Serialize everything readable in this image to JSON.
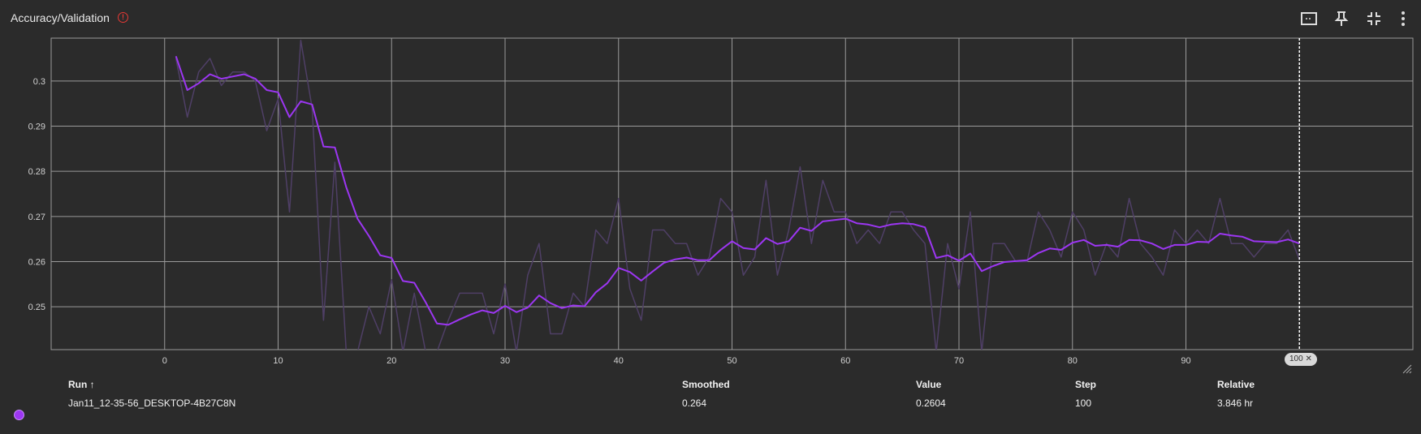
{
  "header": {
    "title": "Accuracy/Validation",
    "info_icon": "info-icon",
    "tools": [
      "fit-domain-icon",
      "pin-icon",
      "collapse-icon",
      "more-vert-icon"
    ]
  },
  "colors": {
    "background": "#2b2b2b",
    "smoothed": "#9c36f2",
    "raw": "#4f3f66",
    "grid": "#9a9a9a"
  },
  "chart_data": {
    "type": "line",
    "title": "Accuracy/Validation",
    "xlim": [
      -10,
      110
    ],
    "ylim": [
      0.2405,
      0.3095
    ],
    "x_ticks": [
      0,
      10,
      20,
      30,
      40,
      50,
      60,
      70,
      80,
      90
    ],
    "y_ticks": [
      "0.25",
      "0.26",
      "0.27",
      "0.28",
      "0.29",
      "0.3"
    ],
    "grid": true,
    "x_marker": 100,
    "series": [
      {
        "name": "raw",
        "x": [
          1,
          2,
          3,
          4,
          5,
          6,
          7,
          8,
          9,
          10,
          11,
          12,
          13,
          14,
          15,
          16,
          17,
          18,
          19,
          20,
          21,
          22,
          23,
          24,
          25,
          26,
          27,
          28,
          29,
          30,
          31,
          32,
          33,
          34,
          35,
          36,
          37,
          38,
          39,
          40,
          41,
          42,
          43,
          44,
          45,
          46,
          47,
          48,
          49,
          50,
          51,
          52,
          53,
          54,
          55,
          56,
          57,
          58,
          59,
          60,
          61,
          62,
          63,
          64,
          65,
          66,
          67,
          68,
          69,
          70,
          71,
          72,
          73,
          74,
          75,
          76,
          77,
          78,
          79,
          80,
          81,
          82,
          83,
          84,
          85,
          86,
          87,
          88,
          89,
          90,
          91,
          92,
          93,
          94,
          95,
          96,
          97,
          98,
          99,
          100
        ],
        "y": [
          0.305,
          0.292,
          0.302,
          0.305,
          0.299,
          0.302,
          0.302,
          0.3,
          0.289,
          0.296,
          0.271,
          0.309,
          0.294,
          0.247,
          0.282,
          0.24,
          0.24,
          0.25,
          0.244,
          0.256,
          0.24,
          0.253,
          0.24,
          0.24,
          0.247,
          0.253,
          0.253,
          0.253,
          0.244,
          0.255,
          0.24,
          0.257,
          0.264,
          0.244,
          0.244,
          0.253,
          0.25,
          0.267,
          0.264,
          0.274,
          0.254,
          0.247,
          0.267,
          0.267,
          0.264,
          0.264,
          0.257,
          0.261,
          0.274,
          0.271,
          0.257,
          0.261,
          0.278,
          0.257,
          0.267,
          0.281,
          0.264,
          0.278,
          0.271,
          0.271,
          0.264,
          0.267,
          0.264,
          0.271,
          0.271,
          0.267,
          0.264,
          0.24,
          0.264,
          0.254,
          0.271,
          0.24,
          0.264,
          0.264,
          0.26,
          0.26,
          0.271,
          0.267,
          0.261,
          0.271,
          0.267,
          0.257,
          0.264,
          0.261,
          0.274,
          0.264,
          0.261,
          0.257,
          0.267,
          0.264,
          0.267,
          0.264,
          0.274,
          0.264,
          0.264,
          0.261,
          0.264,
          0.264,
          0.267,
          0.2604
        ]
      },
      {
        "name": "smoothed",
        "x": [
          1,
          2,
          3,
          4,
          5,
          6,
          7,
          8,
          9,
          10,
          11,
          12,
          13,
          14,
          15,
          16,
          17,
          18,
          19,
          20,
          21,
          22,
          23,
          24,
          25,
          26,
          27,
          28,
          29,
          30,
          31,
          32,
          33,
          34,
          35,
          36,
          37,
          38,
          39,
          40,
          41,
          42,
          43,
          44,
          45,
          46,
          47,
          48,
          49,
          50,
          51,
          52,
          53,
          54,
          55,
          56,
          57,
          58,
          59,
          60,
          61,
          62,
          63,
          64,
          65,
          66,
          67,
          68,
          69,
          70,
          71,
          72,
          73,
          74,
          75,
          76,
          77,
          78,
          79,
          80,
          81,
          82,
          83,
          84,
          85,
          86,
          87,
          88,
          89,
          90,
          91,
          92,
          93,
          94,
          95,
          96,
          97,
          98,
          99,
          100
        ],
        "y": [
          0.3055,
          0.298,
          0.2995,
          0.3015,
          0.3005,
          0.301,
          0.3015,
          0.3005,
          0.298,
          0.2975,
          0.292,
          0.2955,
          0.2948,
          0.2855,
          0.2853,
          0.2765,
          0.2695,
          0.2657,
          0.2614,
          0.2608,
          0.2557,
          0.2553,
          0.251,
          0.2463,
          0.246,
          0.2472,
          0.2483,
          0.2492,
          0.2486,
          0.2502,
          0.2488,
          0.2498,
          0.2525,
          0.2508,
          0.2497,
          0.2503,
          0.2501,
          0.2532,
          0.2552,
          0.2586,
          0.2577,
          0.2558,
          0.2578,
          0.2597,
          0.2605,
          0.2609,
          0.2603,
          0.2603,
          0.2626,
          0.2645,
          0.263,
          0.2627,
          0.2652,
          0.2639,
          0.2645,
          0.2675,
          0.2668,
          0.2689,
          0.2692,
          0.2695,
          0.2685,
          0.2682,
          0.2676,
          0.2682,
          0.2685,
          0.2683,
          0.2676,
          0.2608,
          0.2614,
          0.2602,
          0.2618,
          0.2579,
          0.259,
          0.2599,
          0.2601,
          0.2603,
          0.2619,
          0.2629,
          0.2626,
          0.2642,
          0.2648,
          0.2635,
          0.2637,
          0.2633,
          0.2648,
          0.2647,
          0.264,
          0.2628,
          0.2637,
          0.2637,
          0.2644,
          0.2643,
          0.2662,
          0.2658,
          0.2655,
          0.2645,
          0.2644,
          0.2643,
          0.2649,
          0.264
        ]
      }
    ]
  },
  "marker_label": "100 ✕",
  "table": {
    "headers": {
      "run": "Run ↑",
      "smoothed": "Smoothed",
      "value": "Value",
      "step": "Step",
      "relative": "Relative"
    },
    "row": {
      "run": "Jan11_12-35-56_DESKTOP-4B27C8N",
      "smoothed": "0.264",
      "value": "0.2604",
      "step": "100",
      "relative": "3.846 hr"
    }
  }
}
